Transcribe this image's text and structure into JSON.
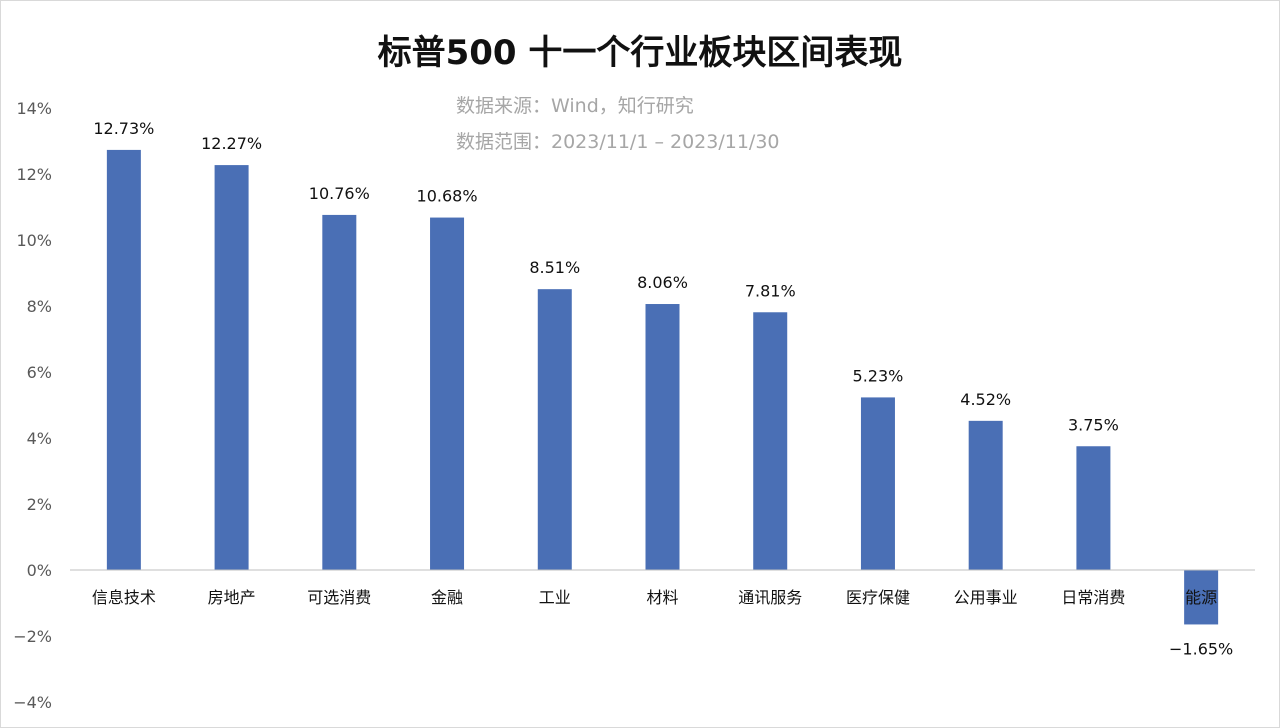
{
  "chart_data": {
    "type": "bar",
    "title": "标普500 十一个行业板块区间表现",
    "source_lines": [
      "数据来源：Wind，知行研究",
      "数据范围：2023/11/1 – 2023/11/30"
    ],
    "categories": [
      "信息技术",
      "房地产",
      "可选消费",
      "金融",
      "工业",
      "材料",
      "通讯服务",
      "医疗保健",
      "公用事业",
      "日常消费",
      "能源"
    ],
    "values": [
      12.73,
      12.27,
      10.76,
      10.68,
      8.51,
      8.06,
      7.81,
      5.23,
      4.52,
      3.75,
      -1.65
    ],
    "data_labels": [
      "12.73%",
      "12.27%",
      "10.76%",
      "10.68%",
      "8.51%",
      "8.06%",
      "7.81%",
      "5.23%",
      "4.52%",
      "3.75%",
      "−1.65%"
    ],
    "ylim": [
      -4,
      14
    ],
    "yticks": [
      14,
      12,
      10,
      8,
      6,
      4,
      2,
      0,
      -2,
      -4
    ],
    "ytick_labels": [
      "14%",
      "12%",
      "10%",
      "8%",
      "6%",
      "4%",
      "2%",
      "0%",
      "−2%",
      "−4%"
    ],
    "xlabel": "",
    "ylabel": "",
    "grid": false,
    "legend": "none",
    "bar_color": "#4a6fb5"
  }
}
